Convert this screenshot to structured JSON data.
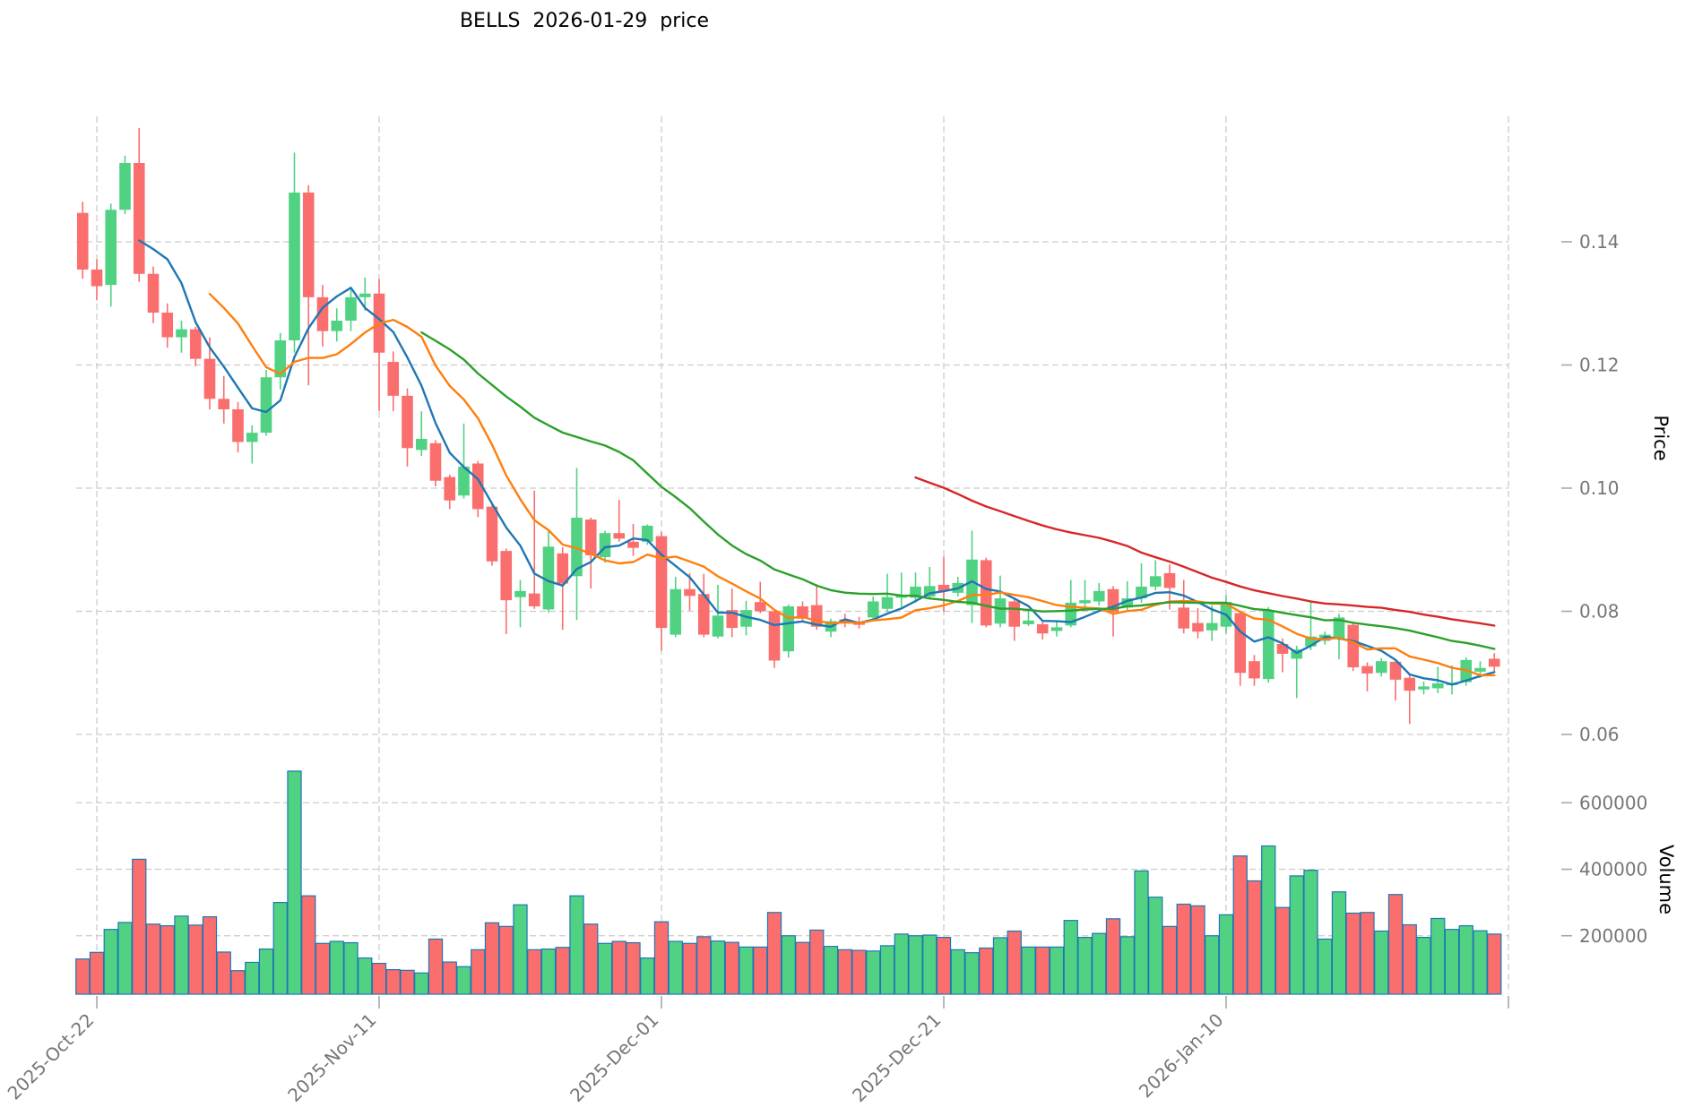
{
  "title": "BELLS  2026-01-29  price",
  "chart_data": {
    "type": "candlestick",
    "title": "BELLS  2026-01-29  price",
    "ylabel": "Price",
    "ylabel_volume": "Volume",
    "legend_position": "none",
    "grid": true,
    "price_axis_range": [
      0.055,
      0.16
    ],
    "price_axis": [
      {
        "label": "0.14",
        "value": 0.14
      },
      {
        "label": "0.12",
        "value": 0.12
      },
      {
        "label": "0.10",
        "value": 0.1
      },
      {
        "label": "0.08",
        "value": 0.08
      },
      {
        "label": "0.06",
        "value": 0.06
      }
    ],
    "volume_axis": [
      {
        "label": "600000",
        "value": 600000
      },
      {
        "label": "400000",
        "value": 400000
      },
      {
        "label": "200000",
        "value": 200000
      }
    ],
    "x_axis": [
      {
        "label": "2025-Oct-22",
        "index": 1
      },
      {
        "label": "2025-Nov-11",
        "index": 21
      },
      {
        "label": "2025-Dec-01",
        "index": 41
      },
      {
        "label": "2025-Dec-21",
        "index": 61
      },
      {
        "label": "2026-Jan-10",
        "index": 81
      }
    ],
    "right_edge_gridline_index": 101,
    "moving_averages": [
      {
        "period": 5,
        "color": "#1f77b4"
      },
      {
        "period": 10,
        "color": "#ff7f0e"
      },
      {
        "period": 25,
        "color": "#2ca02c"
      },
      {
        "period": 60,
        "color": "#d62728"
      }
    ],
    "colors": {
      "up": "#50d282",
      "down": "#fa6e6e",
      "volume_edge": "#1f77b4",
      "grid": "#cccccc",
      "tick_text": "#767676"
    },
    "candles_format": [
      "open",
      "high",
      "low",
      "close",
      "volume"
    ],
    "candles": [
      [
        0.1447,
        0.1465,
        0.134,
        0.1355,
        130000
      ],
      [
        0.1355,
        0.1372,
        0.1305,
        0.1328,
        150000
      ],
      [
        0.133,
        0.1462,
        0.1295,
        0.1452,
        219000
      ],
      [
        0.1452,
        0.154,
        0.1445,
        0.1528,
        240000
      ],
      [
        0.1528,
        0.1585,
        0.1335,
        0.1348,
        430000
      ],
      [
        0.1348,
        0.136,
        0.1268,
        0.1285,
        235000
      ],
      [
        0.1285,
        0.13,
        0.1228,
        0.1245,
        230000
      ],
      [
        0.1245,
        0.1272,
        0.122,
        0.1258,
        259000
      ],
      [
        0.1258,
        0.1262,
        0.1198,
        0.121,
        232000
      ],
      [
        0.121,
        0.1245,
        0.1128,
        0.1145,
        257000
      ],
      [
        0.1145,
        0.1182,
        0.1105,
        0.1128,
        151000
      ],
      [
        0.1128,
        0.114,
        0.1058,
        0.1075,
        95000
      ],
      [
        0.1075,
        0.1102,
        0.104,
        0.109,
        120000
      ],
      [
        0.109,
        0.1192,
        0.1085,
        0.118,
        160000
      ],
      [
        0.118,
        0.1252,
        0.116,
        0.124,
        300000
      ],
      [
        0.124,
        0.1545,
        0.122,
        0.148,
        695000
      ],
      [
        0.148,
        0.1492,
        0.1167,
        0.131,
        320000
      ],
      [
        0.131,
        0.133,
        0.123,
        0.1255,
        177000
      ],
      [
        0.1255,
        0.1292,
        0.1238,
        0.1272,
        183000
      ],
      [
        0.1272,
        0.1322,
        0.1255,
        0.131,
        179000
      ],
      [
        0.131,
        0.1342,
        0.1288,
        0.1316,
        133000
      ],
      [
        0.1316,
        0.134,
        0.1125,
        0.122,
        117000
      ],
      [
        0.1205,
        0.1222,
        0.1125,
        0.115,
        98000
      ],
      [
        0.115,
        0.1162,
        0.1035,
        0.1065,
        96000
      ],
      [
        0.1062,
        0.1125,
        0.1052,
        0.108,
        88000
      ],
      [
        0.1073,
        0.1078,
        0.1003,
        0.1012,
        190000
      ],
      [
        0.1018,
        0.1022,
        0.0966,
        0.098,
        121000
      ],
      [
        0.0988,
        0.1105,
        0.0983,
        0.1035,
        107000
      ],
      [
        0.104,
        0.1044,
        0.0953,
        0.0966,
        158000
      ],
      [
        0.097,
        0.0976,
        0.0874,
        0.0881,
        239000
      ],
      [
        0.0898,
        0.0902,
        0.0763,
        0.0818,
        228000
      ],
      [
        0.0823,
        0.0851,
        0.0774,
        0.0833,
        293000
      ],
      [
        0.0829,
        0.0996,
        0.0804,
        0.0808,
        158000
      ],
      [
        0.0803,
        0.0932,
        0.0798,
        0.0905,
        160000
      ],
      [
        0.0894,
        0.0904,
        0.077,
        0.0845,
        165000
      ],
      [
        0.0857,
        0.1033,
        0.0786,
        0.0952,
        320000
      ],
      [
        0.0949,
        0.0952,
        0.0837,
        0.0891,
        235000
      ],
      [
        0.0888,
        0.0931,
        0.0879,
        0.0927,
        177000
      ],
      [
        0.0927,
        0.0981,
        0.0913,
        0.0918,
        183000
      ],
      [
        0.0913,
        0.0942,
        0.089,
        0.0903,
        179000
      ],
      [
        0.0913,
        0.0941,
        0.0908,
        0.0939,
        133000
      ],
      [
        0.0922,
        0.0929,
        0.0736,
        0.0773,
        242000
      ],
      [
        0.0762,
        0.0856,
        0.0758,
        0.0836,
        183000
      ],
      [
        0.0836,
        0.0862,
        0.0801,
        0.0825,
        177000
      ],
      [
        0.0828,
        0.0861,
        0.0758,
        0.0762,
        197000
      ],
      [
        0.0759,
        0.0843,
        0.0756,
        0.0793,
        184000
      ],
      [
        0.0802,
        0.0837,
        0.0758,
        0.0773,
        180000
      ],
      [
        0.0775,
        0.0817,
        0.0761,
        0.0802,
        166000
      ],
      [
        0.0815,
        0.0848,
        0.0797,
        0.08,
        166000
      ],
      [
        0.08,
        0.0802,
        0.0708,
        0.072,
        270000
      ],
      [
        0.0735,
        0.0811,
        0.0725,
        0.0808,
        200000
      ],
      [
        0.0808,
        0.0816,
        0.0784,
        0.0788,
        180000
      ],
      [
        0.081,
        0.0844,
        0.077,
        0.0775,
        217000
      ],
      [
        0.0767,
        0.0788,
        0.0758,
        0.0784,
        168000
      ],
      [
        0.0787,
        0.0796,
        0.0774,
        0.078,
        158000
      ],
      [
        0.0783,
        0.0791,
        0.0772,
        0.0778,
        156000
      ],
      [
        0.079,
        0.0824,
        0.0784,
        0.0816,
        154000
      ],
      [
        0.0804,
        0.0861,
        0.0799,
        0.0823,
        170000
      ],
      [
        0.0822,
        0.0863,
        0.0807,
        0.0826,
        205000
      ],
      [
        0.0822,
        0.0863,
        0.0814,
        0.084,
        200000
      ],
      [
        0.0824,
        0.0872,
        0.0819,
        0.0841,
        202000
      ],
      [
        0.0843,
        0.0889,
        0.0799,
        0.0833,
        195000
      ],
      [
        0.083,
        0.0856,
        0.0824,
        0.0846,
        158000
      ],
      [
        0.081,
        0.0931,
        0.0781,
        0.0884,
        149000
      ],
      [
        0.0883,
        0.0887,
        0.0774,
        0.0777,
        163000
      ],
      [
        0.078,
        0.0858,
        0.0774,
        0.0821,
        194000
      ],
      [
        0.0816,
        0.0822,
        0.0752,
        0.0775,
        214000
      ],
      [
        0.0779,
        0.08,
        0.0776,
        0.0785,
        166000
      ],
      [
        0.0779,
        0.0786,
        0.0754,
        0.0764,
        166000
      ],
      [
        0.0768,
        0.0783,
        0.0759,
        0.0774,
        166000
      ],
      [
        0.0777,
        0.0851,
        0.0774,
        0.0814,
        246000
      ],
      [
        0.0813,
        0.0851,
        0.0803,
        0.0818,
        195000
      ],
      [
        0.0816,
        0.0846,
        0.0809,
        0.0833,
        207000
      ],
      [
        0.0836,
        0.0841,
        0.0759,
        0.0799,
        251000
      ],
      [
        0.0806,
        0.0849,
        0.0799,
        0.0821,
        197000
      ],
      [
        0.0821,
        0.0878,
        0.0814,
        0.084,
        395000
      ],
      [
        0.084,
        0.0883,
        0.0834,
        0.0857,
        316000
      ],
      [
        0.0862,
        0.0876,
        0.0803,
        0.0838,
        228000
      ],
      [
        0.0806,
        0.0851,
        0.0764,
        0.0772,
        295000
      ],
      [
        0.0781,
        0.0805,
        0.0756,
        0.0767,
        290000
      ],
      [
        0.0769,
        0.081,
        0.0752,
        0.0781,
        200000
      ],
      [
        0.0775,
        0.0826,
        0.0764,
        0.0815,
        263000
      ],
      [
        0.0797,
        0.0801,
        0.0679,
        0.07,
        440000
      ],
      [
        0.0719,
        0.0729,
        0.0679,
        0.0691,
        365000
      ],
      [
        0.069,
        0.0807,
        0.0684,
        0.0802,
        470000
      ],
      [
        0.0747,
        0.0756,
        0.0701,
        0.0731,
        285000
      ],
      [
        0.0723,
        0.0744,
        0.0659,
        0.0738,
        380000
      ],
      [
        0.0743,
        0.0816,
        0.0737,
        0.0759,
        397000
      ],
      [
        0.0752,
        0.0767,
        0.0746,
        0.0762,
        190000
      ],
      [
        0.0755,
        0.0796,
        0.0722,
        0.079,
        332000
      ],
      [
        0.0778,
        0.0783,
        0.0703,
        0.0709,
        268000
      ],
      [
        0.0711,
        0.0717,
        0.067,
        0.0699,
        270000
      ],
      [
        0.07,
        0.0724,
        0.0694,
        0.0719,
        214000
      ],
      [
        0.0718,
        0.0722,
        0.0655,
        0.0689,
        324000
      ],
      [
        0.0692,
        0.0697,
        0.0617,
        0.0671,
        233000
      ],
      [
        0.0673,
        0.0686,
        0.0665,
        0.0678,
        195000
      ],
      [
        0.0675,
        0.071,
        0.0667,
        0.0683,
        252000
      ],
      [
        0.068,
        0.0712,
        0.0665,
        0.0684,
        219000
      ],
      [
        0.0685,
        0.0725,
        0.0679,
        0.0721,
        230000
      ],
      [
        0.0702,
        0.0719,
        0.0692,
        0.0708,
        215000
      ],
      [
        0.0723,
        0.0732,
        0.0703,
        0.071,
        205000
      ]
    ]
  }
}
